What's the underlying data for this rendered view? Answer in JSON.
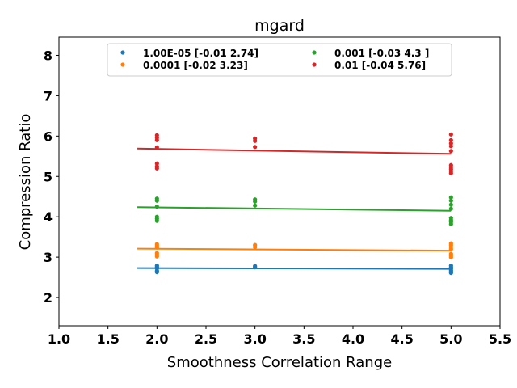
{
  "chart_data": {
    "type": "scatter",
    "title": "mgard",
    "xlabel": "Smoothness Correlation Range",
    "ylabel": "Compression Ratio",
    "xlim": [
      1.0,
      5.5
    ],
    "ylim": [
      1.3,
      8.45
    ],
    "xticks": [
      "1.0",
      "1.5",
      "2.0",
      "2.5",
      "3.0",
      "3.5",
      "4.0",
      "4.5",
      "5.0",
      "5.5"
    ],
    "yticks": [
      "2",
      "3",
      "4",
      "5",
      "6",
      "7",
      "8"
    ],
    "grid": false,
    "legend_position": "top-center",
    "series": [
      {
        "name": "1.00E-05 [-0.01  2.74]",
        "color": "#1f77b4",
        "points": [
          [
            2.0,
            2.63
          ],
          [
            2.0,
            2.66
          ],
          [
            2.0,
            2.72
          ],
          [
            2.0,
            2.76
          ],
          [
            2.0,
            2.79
          ],
          [
            3.0,
            2.75
          ],
          [
            3.0,
            2.78
          ],
          [
            5.0,
            2.61
          ],
          [
            5.0,
            2.64
          ],
          [
            5.0,
            2.67
          ],
          [
            5.0,
            2.71
          ],
          [
            5.0,
            2.75
          ],
          [
            5.0,
            2.79
          ]
        ],
        "fit": [
          [
            1.8,
            2.73
          ],
          [
            5.0,
            2.71
          ]
        ]
      },
      {
        "name": "0.0001 [-0.02  3.23]",
        "color": "#ff7f0e",
        "points": [
          [
            2.0,
            3.02
          ],
          [
            2.0,
            3.06
          ],
          [
            2.0,
            3.1
          ],
          [
            2.0,
            3.24
          ],
          [
            2.0,
            3.28
          ],
          [
            2.0,
            3.32
          ],
          [
            3.0,
            3.25
          ],
          [
            3.0,
            3.3
          ],
          [
            5.0,
            3.0
          ],
          [
            5.0,
            3.04
          ],
          [
            5.0,
            3.08
          ],
          [
            5.0,
            3.2
          ],
          [
            5.0,
            3.25
          ],
          [
            5.0,
            3.3
          ],
          [
            5.0,
            3.34
          ]
        ],
        "fit": [
          [
            1.8,
            3.21
          ],
          [
            5.0,
            3.16
          ]
        ]
      },
      {
        "name": "0.001 [-0.03  4.3 ]",
        "color": "#2ca02c",
        "points": [
          [
            2.0,
            3.9
          ],
          [
            2.0,
            3.95
          ],
          [
            2.0,
            4.0
          ],
          [
            2.0,
            4.25
          ],
          [
            2.0,
            4.4
          ],
          [
            2.0,
            4.45
          ],
          [
            3.0,
            4.28
          ],
          [
            3.0,
            4.38
          ],
          [
            3.0,
            4.43
          ],
          [
            5.0,
            3.82
          ],
          [
            5.0,
            3.87
          ],
          [
            5.0,
            3.92
          ],
          [
            5.0,
            3.97
          ],
          [
            5.0,
            4.2
          ],
          [
            5.0,
            4.3
          ],
          [
            5.0,
            4.4
          ],
          [
            5.0,
            4.48
          ]
        ],
        "fit": [
          [
            1.8,
            4.24
          ],
          [
            5.0,
            4.15
          ]
        ]
      },
      {
        "name": "0.01 [-0.04  5.76]",
        "color": "#d62728",
        "points": [
          [
            2.0,
            5.2
          ],
          [
            2.0,
            5.25
          ],
          [
            2.0,
            5.32
          ],
          [
            2.0,
            5.72
          ],
          [
            2.0,
            5.9
          ],
          [
            2.0,
            5.96
          ],
          [
            2.0,
            6.02
          ],
          [
            3.0,
            5.73
          ],
          [
            3.0,
            5.88
          ],
          [
            3.0,
            5.94
          ],
          [
            5.0,
            5.08
          ],
          [
            5.0,
            5.13
          ],
          [
            5.0,
            5.18
          ],
          [
            5.0,
            5.23
          ],
          [
            5.0,
            5.28
          ],
          [
            5.0,
            5.63
          ],
          [
            5.0,
            5.75
          ],
          [
            5.0,
            5.82
          ],
          [
            5.0,
            5.9
          ],
          [
            5.0,
            6.04
          ]
        ],
        "fit": [
          [
            1.8,
            5.69
          ],
          [
            5.0,
            5.56
          ]
        ]
      }
    ]
  }
}
